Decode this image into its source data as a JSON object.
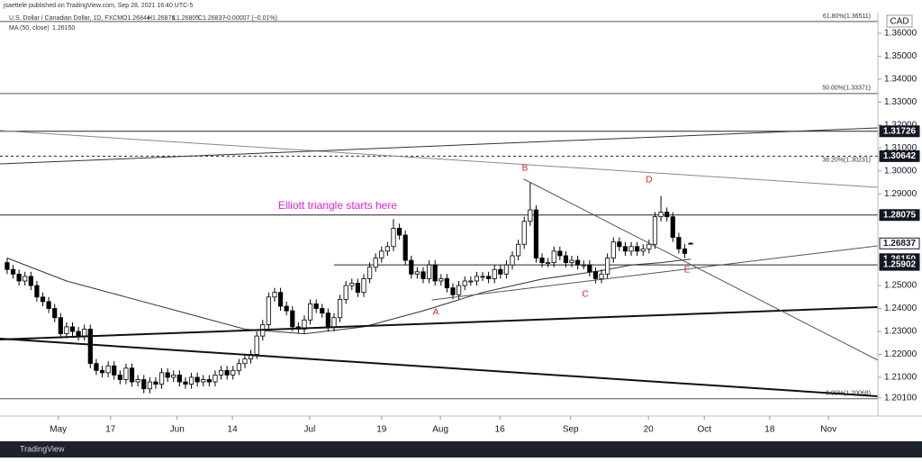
{
  "header": {
    "author": "jsaettele published on TradingView.com, Sep 28, 2021 16:40 UTC-5",
    "symbol": "U.S. Dollar / Canadian Dollar, 1D, FXCM",
    "ohlc": [
      "O1.26844",
      "H1.26878",
      "L1.26805",
      "C1.26837",
      "−0.00007 (−0.01%)"
    ],
    "currency": "CAD"
  },
  "footer": {
    "brand": "TradingView"
  },
  "annotations": {
    "note": "Elliott triangle starts here",
    "waves": [
      "A",
      "B",
      "C",
      "D",
      "E"
    ]
  },
  "chart_data": {
    "type": "candlestick",
    "open": [
      1.26,
      1.257,
      1.255,
      1.252,
      1.254,
      1.25,
      1.245,
      1.243,
      1.24,
      1.236,
      1.229,
      1.232,
      1.23,
      1.228,
      1.231,
      1.216,
      1.213,
      1.212,
      1.215,
      1.211,
      1.209,
      1.214,
      1.208,
      1.209,
      1.205,
      1.208,
      1.207,
      1.212,
      1.21,
      1.211,
      1.208,
      1.207,
      1.21,
      1.208,
      1.209,
      1.208,
      1.211,
      1.213,
      1.211,
      1.213,
      1.216,
      1.218,
      1.22,
      1.228,
      1.233,
      1.245,
      1.247,
      1.241,
      1.239,
      1.232,
      1.231,
      1.235,
      1.242,
      1.24,
      1.238,
      1.232,
      1.236,
      1.244,
      1.25,
      1.251,
      1.247,
      1.253,
      1.258,
      1.262,
      1.265,
      1.267,
      1.275,
      1.272,
      1.261,
      1.255,
      1.256,
      1.253,
      1.259,
      1.252,
      1.253,
      1.249,
      1.246,
      1.25,
      1.252,
      1.252,
      1.254,
      1.254,
      1.253,
      1.257,
      1.255,
      1.259,
      1.263,
      1.268,
      1.278,
      1.283,
      1.262,
      1.26,
      1.26,
      1.265,
      1.263,
      1.26,
      1.261,
      1.259,
      1.259,
      1.256,
      1.253,
      1.255,
      1.262,
      1.269,
      1.267,
      1.265,
      1.267,
      1.265,
      1.266,
      1.268,
      1.28,
      1.282,
      1.28,
      1.271,
      1.266,
      1.26844
    ],
    "high": [
      1.262,
      1.259,
      1.257,
      1.256,
      1.256,
      1.252,
      1.247,
      1.245,
      1.242,
      1.238,
      1.234,
      1.234,
      1.232,
      1.233,
      1.233,
      1.218,
      1.215,
      1.217,
      1.217,
      1.213,
      1.216,
      1.216,
      1.211,
      1.211,
      1.21,
      1.21,
      1.214,
      1.214,
      1.213,
      1.213,
      1.21,
      1.212,
      1.212,
      1.211,
      1.211,
      1.213,
      1.215,
      1.215,
      1.215,
      1.218,
      1.22,
      1.222,
      1.23,
      1.235,
      1.247,
      1.249,
      1.249,
      1.243,
      1.241,
      1.234,
      1.237,
      1.244,
      1.244,
      1.242,
      1.24,
      1.238,
      1.246,
      1.252,
      1.253,
      1.253,
      1.255,
      1.26,
      1.264,
      1.267,
      1.269,
      1.279,
      1.277,
      1.274,
      1.263,
      1.258,
      1.258,
      1.261,
      1.261,
      1.255,
      1.255,
      1.251,
      1.252,
      1.254,
      1.254,
      1.256,
      1.256,
      1.256,
      1.259,
      1.259,
      1.261,
      1.265,
      1.27,
      1.28,
      1.295,
      1.285,
      1.264,
      1.262,
      1.267,
      1.267,
      1.265,
      1.263,
      1.263,
      1.261,
      1.261,
      1.258,
      1.257,
      1.264,
      1.271,
      1.271,
      1.269,
      1.269,
      1.269,
      1.268,
      1.27,
      1.282,
      1.289,
      1.284,
      1.282,
      1.273,
      1.268,
      1.26878
    ],
    "low": [
      1.255,
      1.253,
      1.25,
      1.25,
      1.248,
      1.243,
      1.241,
      1.238,
      1.234,
      1.227,
      1.227,
      1.228,
      1.226,
      1.226,
      1.214,
      1.211,
      1.21,
      1.21,
      1.209,
      1.207,
      1.207,
      1.206,
      1.206,
      1.203,
      1.203,
      1.205,
      1.205,
      1.208,
      1.208,
      1.206,
      1.205,
      1.205,
      1.206,
      1.206,
      1.206,
      1.206,
      1.209,
      1.209,
      1.209,
      1.211,
      1.214,
      1.216,
      1.218,
      1.226,
      1.231,
      1.243,
      1.239,
      1.237,
      1.23,
      1.229,
      1.229,
      1.233,
      1.238,
      1.236,
      1.23,
      1.23,
      1.234,
      1.242,
      1.248,
      1.245,
      1.245,
      1.251,
      1.256,
      1.26,
      1.263,
      1.265,
      1.27,
      1.259,
      1.253,
      1.253,
      1.251,
      1.251,
      1.25,
      1.25,
      1.247,
      1.244,
      1.244,
      1.248,
      1.25,
      1.25,
      1.252,
      1.251,
      1.251,
      1.253,
      1.253,
      1.257,
      1.261,
      1.266,
      1.276,
      1.26,
      1.258,
      1.258,
      1.258,
      1.261,
      1.258,
      1.258,
      1.257,
      1.257,
      1.254,
      1.251,
      1.251,
      1.253,
      1.26,
      1.265,
      1.263,
      1.263,
      1.263,
      1.263,
      1.264,
      1.266,
      1.278,
      1.278,
      1.269,
      1.264,
      1.262,
      1.26805
    ],
    "close": [
      1.257,
      1.255,
      1.252,
      1.254,
      1.25,
      1.245,
      1.243,
      1.24,
      1.236,
      1.229,
      1.232,
      1.23,
      1.228,
      1.231,
      1.216,
      1.213,
      1.212,
      1.215,
      1.211,
      1.209,
      1.214,
      1.208,
      1.209,
      1.205,
      1.208,
      1.207,
      1.212,
      1.21,
      1.211,
      1.208,
      1.207,
      1.21,
      1.208,
      1.209,
      1.208,
      1.211,
      1.213,
      1.211,
      1.213,
      1.216,
      1.218,
      1.22,
      1.228,
      1.233,
      1.245,
      1.247,
      1.241,
      1.239,
      1.232,
      1.231,
      1.235,
      1.242,
      1.24,
      1.238,
      1.232,
      1.236,
      1.244,
      1.25,
      1.251,
      1.247,
      1.253,
      1.258,
      1.262,
      1.265,
      1.267,
      1.275,
      1.272,
      1.261,
      1.255,
      1.256,
      1.253,
      1.259,
      1.252,
      1.253,
      1.249,
      1.246,
      1.25,
      1.252,
      1.252,
      1.254,
      1.254,
      1.253,
      1.257,
      1.255,
      1.259,
      1.263,
      1.268,
      1.278,
      1.283,
      1.262,
      1.26,
      1.26,
      1.265,
      1.263,
      1.26,
      1.261,
      1.259,
      1.259,
      1.256,
      1.253,
      1.255,
      1.262,
      1.269,
      1.267,
      1.265,
      1.267,
      1.265,
      1.266,
      1.268,
      1.28,
      1.282,
      1.28,
      1.271,
      1.266,
      1.264,
      1.26837
    ],
    "up_color": "#ffffff",
    "down_color": "#000000",
    "ma": {
      "name": "MA (50, close)",
      "value_label": "1.26150",
      "color": "#333333",
      "x": [
        0,
        10,
        20,
        30,
        40,
        50,
        60,
        70,
        80,
        90,
        100,
        105,
        110,
        115
      ],
      "values": [
        1.262,
        1.252,
        1.245,
        1.238,
        1.231,
        1.229,
        1.232,
        1.239,
        1.247,
        1.2528,
        1.2565,
        1.259,
        1.26,
        1.2615
      ]
    },
    "ylim": [
      1.1931,
      1.369
    ],
    "xlim": [
      -1.2,
      146.5
    ],
    "yticks": [
      {
        "value": 1.36,
        "label": "1.36000"
      },
      {
        "value": 1.35,
        "label": "1.35000"
      },
      {
        "value": 1.34,
        "label": "1.34000"
      },
      {
        "value": 1.33,
        "label": "1.33000"
      },
      {
        "value": 1.32,
        "label": "1.32000"
      },
      {
        "value": 1.31,
        "label": "1.31000"
      },
      {
        "value": 1.3,
        "label": "1.30000"
      },
      {
        "value": 1.29,
        "label": "1.29000"
      },
      {
        "value": 1.25,
        "label": "1.25000"
      },
      {
        "value": 1.24,
        "label": "1.24000"
      },
      {
        "value": 1.23,
        "label": "1.23000"
      },
      {
        "value": 1.22,
        "label": "1.22000"
      },
      {
        "value": 1.21,
        "label": "1.21000"
      },
      {
        "value": 1.201,
        "label": "1.20100"
      }
    ],
    "xticks": [
      {
        "value": 8.6,
        "label": "May"
      },
      {
        "value": 17.4,
        "label": "17"
      },
      {
        "value": 28.6,
        "label": "Jun"
      },
      {
        "value": 37.9,
        "label": "14"
      },
      {
        "value": 50.9,
        "label": "Jul"
      },
      {
        "value": 63,
        "label": "19"
      },
      {
        "value": 72.9,
        "label": "Aug"
      },
      {
        "value": 82.9,
        "label": "16"
      },
      {
        "value": 94.8,
        "label": "Sep"
      },
      {
        "value": 107.9,
        "label": "20"
      },
      {
        "value": 117.3,
        "label": "Oct"
      },
      {
        "value": 128.3,
        "label": "18"
      },
      {
        "value": 138.2,
        "label": "Nov"
      }
    ],
    "levels": [
      {
        "value": 1.36511,
        "label": "61.80%(1.36511)",
        "style": "solid"
      },
      {
        "value": 1.33371,
        "label": "50.00%(1.33371)",
        "style": "solid"
      },
      {
        "value": 1.30231,
        "label": "38.20%(1.30231)",
        "style": "none"
      },
      {
        "value": 1.20068,
        "label": "0.00%(1.20068)",
        "style": "solid"
      }
    ],
    "price_labels": [
      {
        "value": 1.31726,
        "label": "1.31726",
        "line": "solid"
      },
      {
        "value": 1.30642,
        "label": "1.30642",
        "line": "dashed"
      },
      {
        "value": 1.28075,
        "label": "1.28075",
        "line": "solid"
      },
      {
        "value": 1.26837,
        "label": "1.26837",
        "line": "none"
      },
      {
        "value": 1.2615,
        "label": "1.26150",
        "line": "none"
      },
      {
        "value": 1.25902,
        "label": "1.25902",
        "line": "partial"
      }
    ]
  }
}
